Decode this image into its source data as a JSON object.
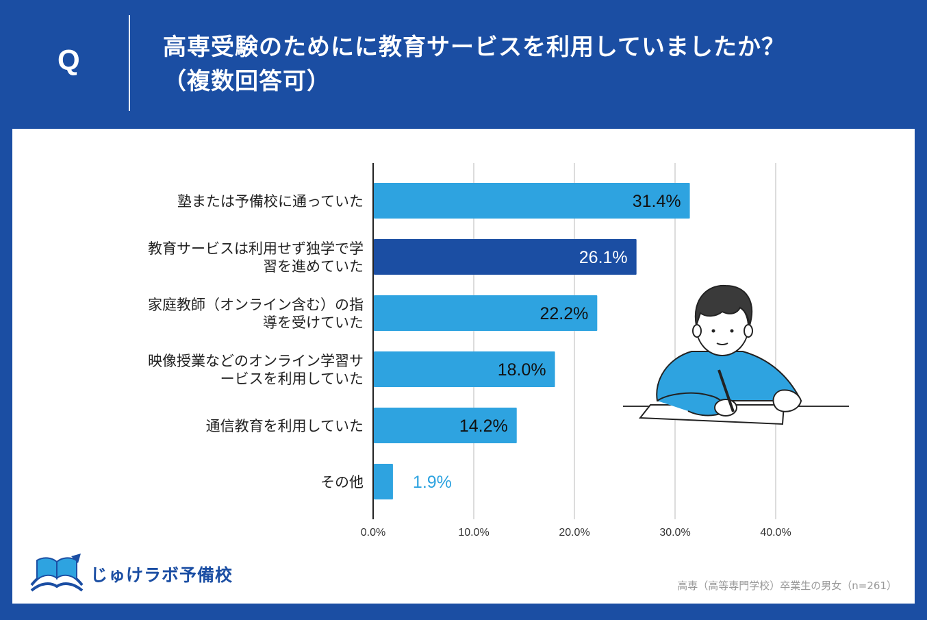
{
  "header": {
    "q_mark": "Q",
    "title_line1": "高専受験のためにに教育サービスを利用していましたか？",
    "title_line2": "（複数回答可）"
  },
  "chart_data": {
    "type": "bar",
    "orientation": "horizontal",
    "categories": [
      [
        "塾または予備校に通っていた"
      ],
      [
        "教育サービスは利用せず独学で学",
        "習を進めていた"
      ],
      [
        "家庭教師（オンライン含む）の指",
        "導を受けていた"
      ],
      [
        "映像授業などのオンライン学習サ",
        "ービスを利用していた"
      ],
      [
        "通信教育を利用していた"
      ],
      [
        "その他"
      ]
    ],
    "values": [
      31.4,
      26.1,
      22.2,
      18.0,
      14.2,
      1.9
    ],
    "value_labels": [
      "31.4%",
      "26.1%",
      "22.2%",
      "18.0%",
      "14.2%",
      "1.9%"
    ],
    "highlight_index": 1,
    "xlim": [
      0,
      40
    ],
    "xticks": [
      0,
      10,
      20,
      30,
      40
    ],
    "xtick_labels": [
      "0.0%",
      "10.0%",
      "20.0%",
      "30.0%",
      "40.0%"
    ],
    "grid": true,
    "colors": {
      "bar": "#2ea3e0",
      "highlight": "#1b4ea3",
      "outside_label": "#2ea3e0",
      "grid": "#d0d0d0"
    }
  },
  "logo": {
    "text": "じゅけラボ予備校",
    "icon": "open-book-icon"
  },
  "footnote": "高専（高等専門学校）卒業生の男女（n=261）"
}
